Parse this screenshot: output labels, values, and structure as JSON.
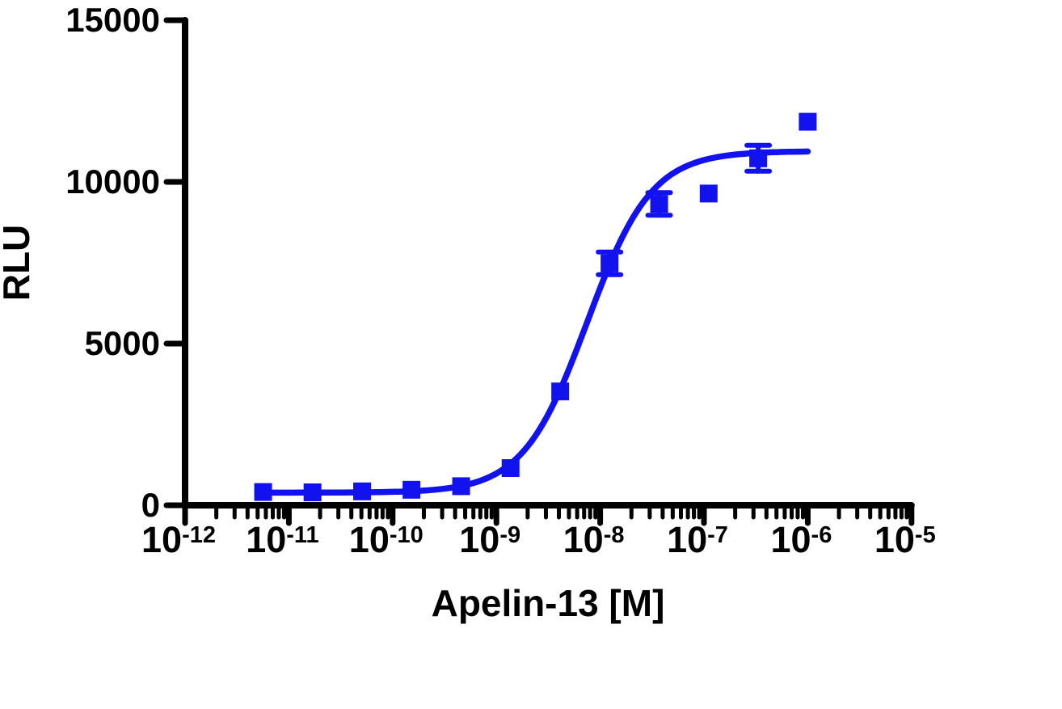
{
  "chart_data": {
    "type": "scatter",
    "title": "",
    "xlabel": "Apelin-13 [M]",
    "ylabel": "RLU",
    "x_scale": "log10",
    "xlim_exponents": [
      -12,
      -5
    ],
    "x_major_tick_exponents": [
      -12,
      -11,
      -10,
      -9,
      -8,
      -7,
      -6,
      -5
    ],
    "x_minor_ticks": "log-decade-2-through-9",
    "ylim": [
      0,
      15000
    ],
    "y_ticks": [
      0,
      5000,
      10000,
      15000
    ],
    "grid": false,
    "legend": "none",
    "background_color": "#ffffff",
    "axis_color": "#000000",
    "series": [
      {
        "name": "Apelin-13",
        "color": "#1212ee",
        "marker": "filled-square",
        "points": [
          {
            "x": 5.65e-12,
            "y": 410,
            "err": 0
          },
          {
            "x": 1.69e-11,
            "y": 400,
            "err": 0
          },
          {
            "x": 5.08e-11,
            "y": 430,
            "err": 0
          },
          {
            "x": 1.52e-10,
            "y": 480,
            "err": 0
          },
          {
            "x": 4.57e-10,
            "y": 590,
            "err": 0
          },
          {
            "x": 1.37e-09,
            "y": 1150,
            "err": 0
          },
          {
            "x": 4.12e-09,
            "y": 3520,
            "err": 0
          },
          {
            "x": 1.23e-08,
            "y": 7480,
            "err": 350
          },
          {
            "x": 3.7e-08,
            "y": 9320,
            "err": 350
          },
          {
            "x": 1.11e-07,
            "y": 9640,
            "err": 0
          },
          {
            "x": 3.33e-07,
            "y": 10730,
            "err": 400
          },
          {
            "x": 1e-06,
            "y": 11860,
            "err": 0
          }
        ],
        "fit_curve": {
          "model": "four-parameter-logistic",
          "bottom": 390,
          "top": 10950,
          "ec50": 7.5e-09,
          "hill_slope": 1.4
        }
      }
    ]
  }
}
